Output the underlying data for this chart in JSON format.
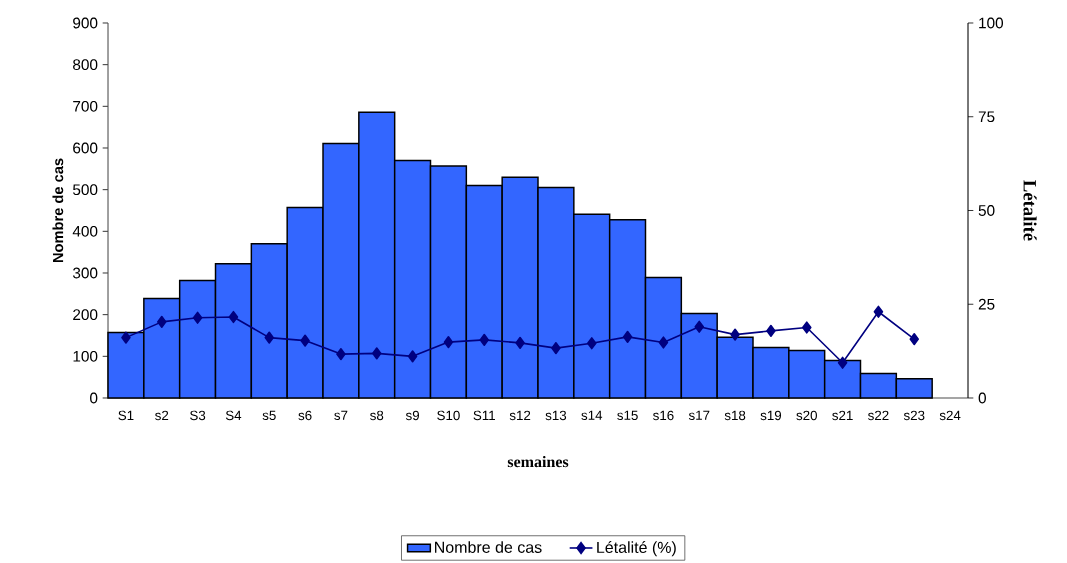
{
  "chart_data": {
    "type": "bar",
    "xlabel": "semaines",
    "ylabel": "Nombre de cas",
    "y2label": "Létalité",
    "categories": [
      "S1",
      "s2",
      "S3",
      "S4",
      "s5",
      "s6",
      "s7",
      "s8",
      "s9",
      "S10",
      "S11",
      "s12",
      "s13",
      "s14",
      "s15",
      "s16",
      "s17",
      "s18",
      "s19",
      "s20",
      "s21",
      "s22",
      "s23",
      "s24"
    ],
    "series": [
      {
        "name": "Nombre de cas",
        "color": "#3366ff",
        "values": [
          157,
          239,
          282,
          322,
          370,
          457,
          611,
          686,
          570,
          557,
          510,
          530,
          505,
          441,
          428,
          289,
          203,
          146,
          121,
          114,
          90,
          59,
          46,
          null
        ]
      },
      {
        "name": "Létalité (%)",
        "type": "line",
        "axis": "y2",
        "color": "#000080",
        "marker": "diamond",
        "values": [
          16.1,
          20.3,
          21.4,
          21.6,
          16.1,
          15.3,
          11.7,
          11.9,
          11.1,
          14.9,
          15.5,
          14.7,
          13.3,
          14.6,
          16.3,
          14.8,
          19.0,
          16.9,
          17.9,
          18.8,
          9.4,
          23.0,
          15.7,
          null
        ]
      }
    ],
    "ylim": [
      0,
      900
    ],
    "yticks": [
      0,
      100,
      200,
      300,
      400,
      500,
      600,
      700,
      800,
      900
    ],
    "y2lim": [
      0,
      100
    ],
    "y2ticks": [
      0,
      25,
      50,
      75,
      100
    ],
    "legend": "bottom"
  }
}
